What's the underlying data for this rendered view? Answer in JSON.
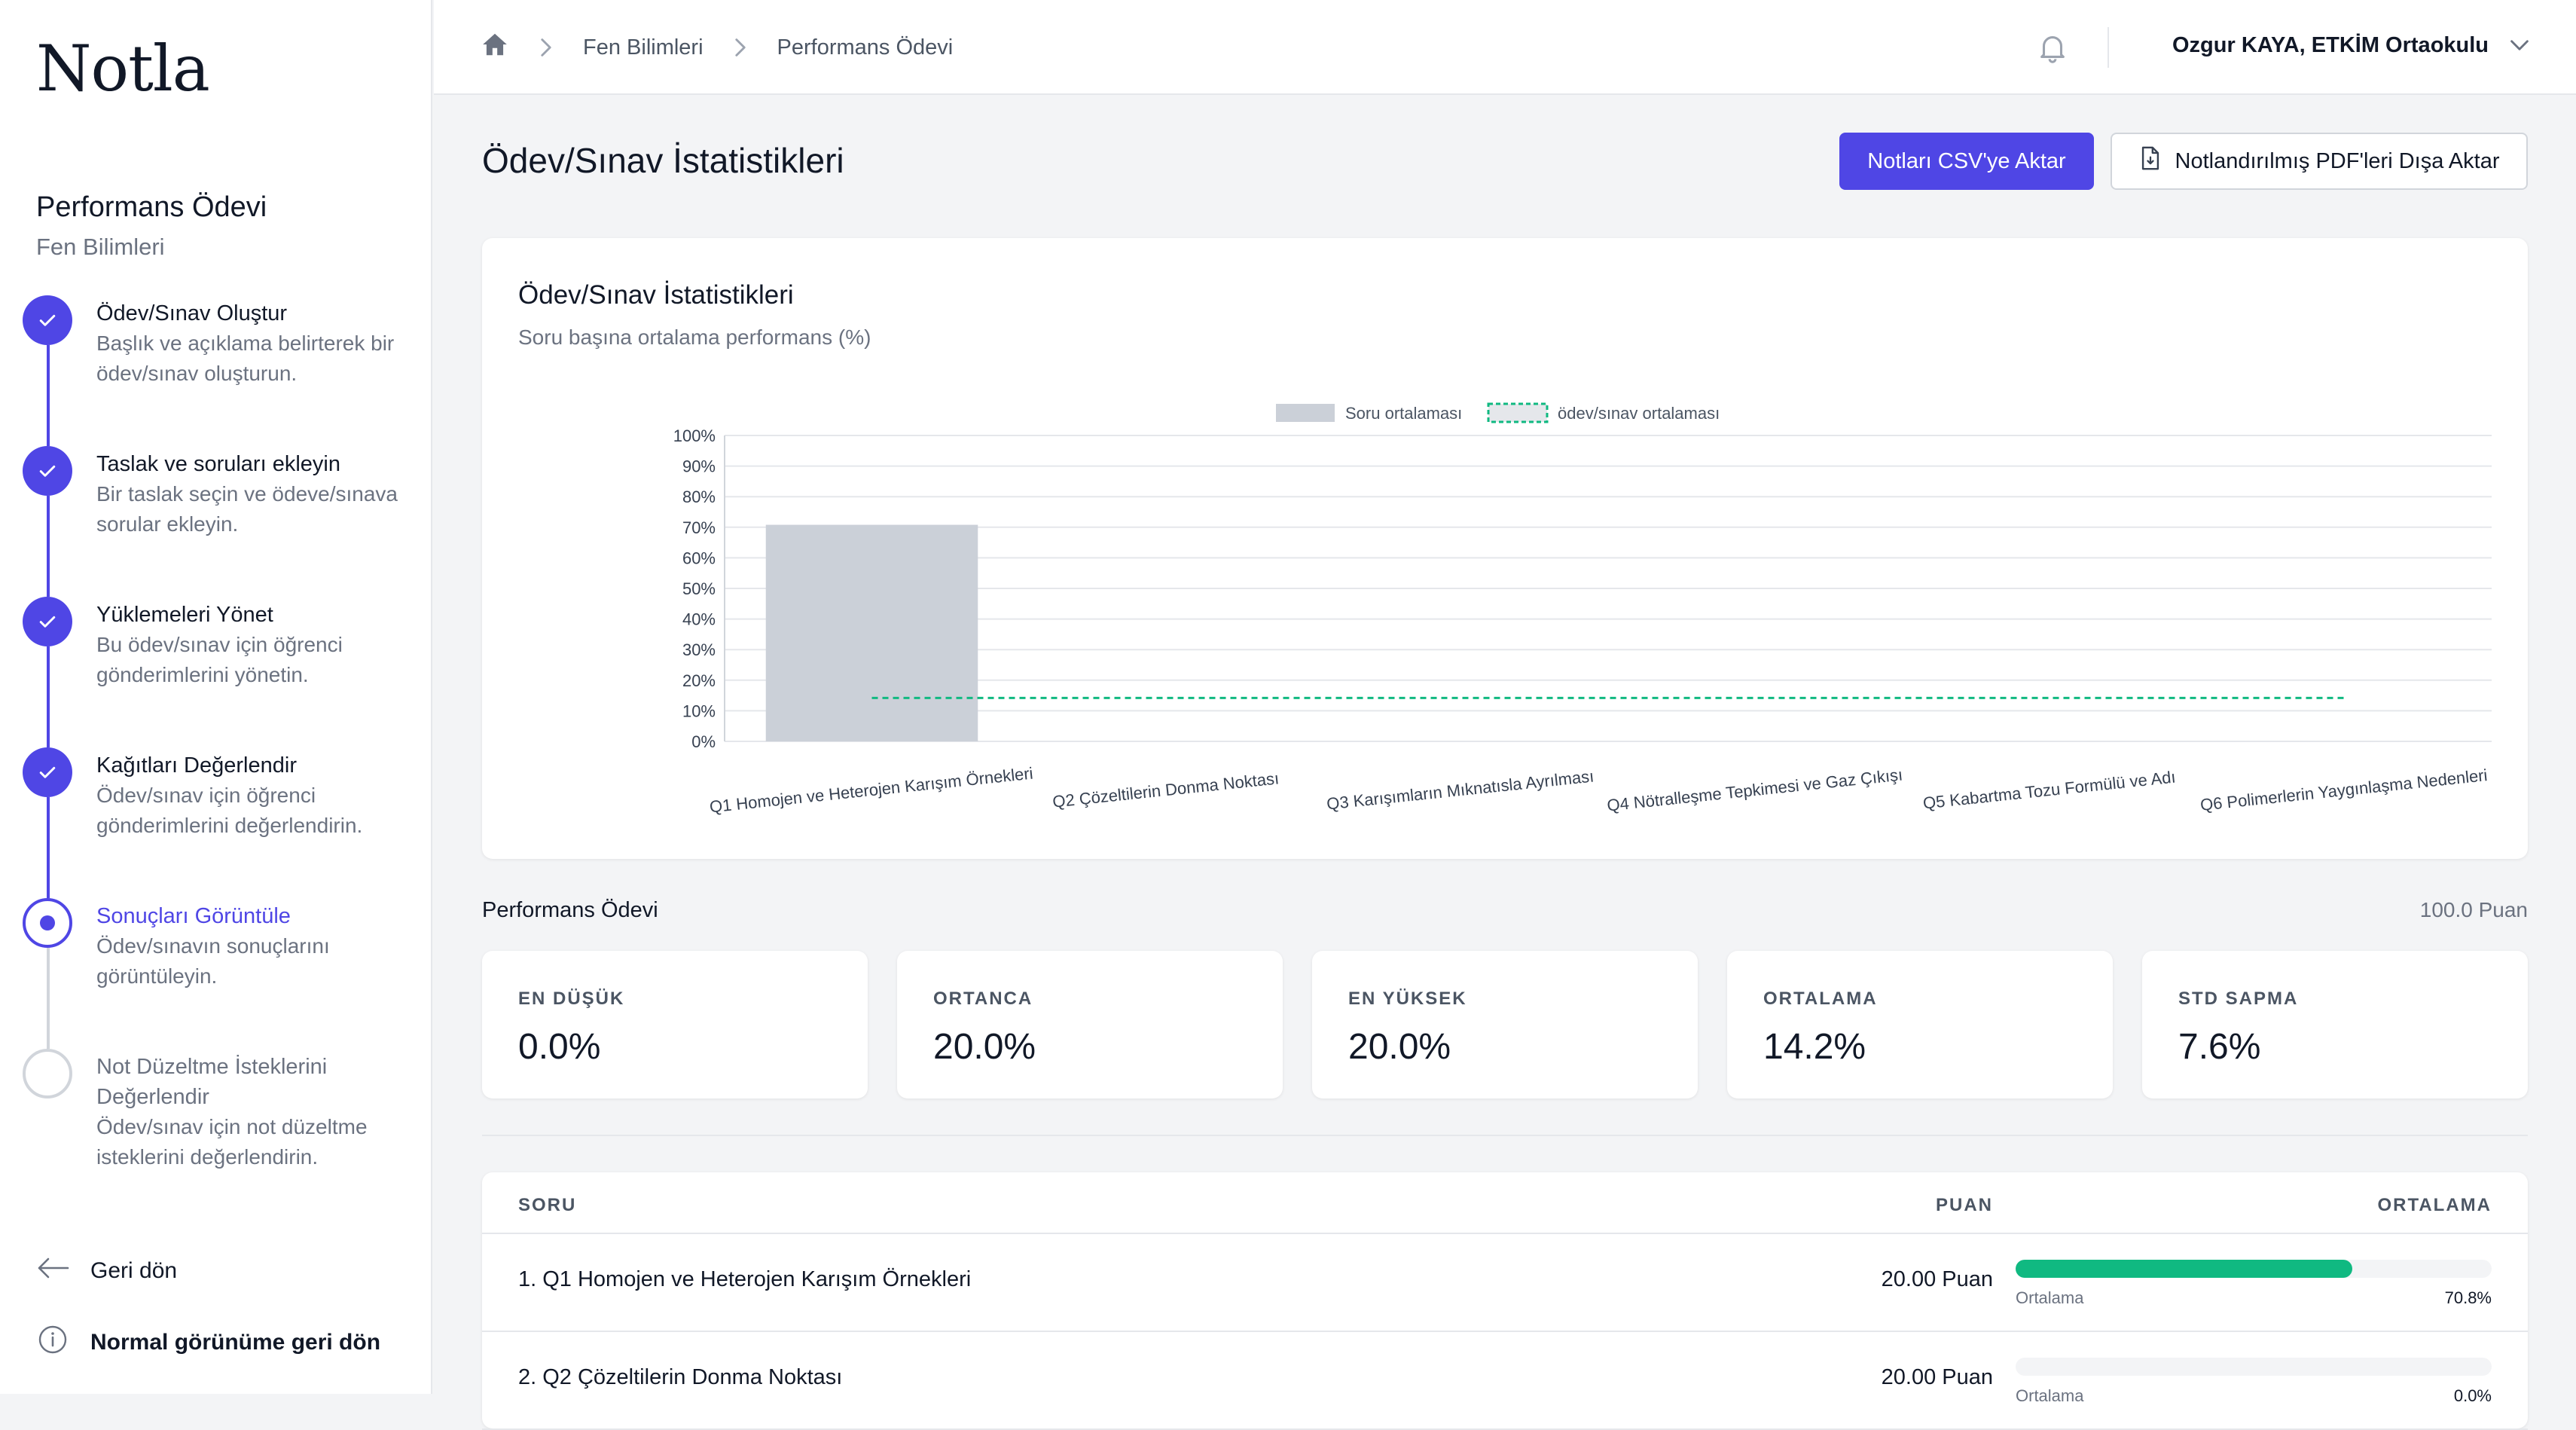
{
  "app": {
    "logo": "Notla"
  },
  "sidebar": {
    "assignment_title": "Performans Ödevi",
    "assignment_subject": "Fen Bilimleri",
    "steps": [
      {
        "title": "Ödev/Sınav Oluştur",
        "desc": "Başlık ve açıklama belirterek bir ödev/sınav oluşturun.",
        "status": "done"
      },
      {
        "title": "Taslak ve soruları ekleyin",
        "desc": "Bir taslak seçin ve ödeve/sınava sorular ekleyin.",
        "status": "done"
      },
      {
        "title": "Yüklemeleri Yönet",
        "desc": "Bu ödev/sınav için öğrenci gönderimlerini yönetin.",
        "status": "done"
      },
      {
        "title": "Kağıtları Değerlendir",
        "desc": "Ödev/sınav için öğrenci gönderimlerini değerlendirin.",
        "status": "done"
      },
      {
        "title": "Sonuçları Görüntüle",
        "desc": "Ödev/sınavın sonuçlarını görüntüleyin.",
        "status": "current"
      },
      {
        "title": "Not Düzeltme İsteklerini Değerlendir",
        "desc": "Ödev/sınav için not düzeltme isteklerini değerlendirin.",
        "status": "todo"
      }
    ],
    "back_label": "Geri dön",
    "normal_view_label": "Normal görünüme geri dön"
  },
  "header": {
    "breadcrumbs": [
      "Fen Bilimleri",
      "Performans Ödevi"
    ],
    "user": "Ozgur KAYA, ETKİM Ortaokulu"
  },
  "main": {
    "title": "Ödev/Sınav İstatistikleri",
    "csv_button": "Notları CSV'ye Aktar",
    "pdf_button": "Notlandırılmış PDF'leri Dışa Aktar",
    "chart_title": "Ödev/Sınav İstatistikleri",
    "chart_subtitle": "Soru başına ortalama performans (%)",
    "section_label": "Performans Ödevi",
    "section_points": "100.0 Puan",
    "stats": [
      {
        "label": "EN DÜŞÜK",
        "value": "0.0%"
      },
      {
        "label": "ORTANCA",
        "value": "20.0%"
      },
      {
        "label": "EN YÜKSEK",
        "value": "20.0%"
      },
      {
        "label": "ORTALAMA",
        "value": "14.2%"
      },
      {
        "label": "STD SAPMA",
        "value": "7.6%"
      }
    ],
    "table": {
      "headers": {
        "question": "SORU",
        "points": "PUAN",
        "average": "ORTALAMA"
      },
      "rows": [
        {
          "question": "1. Q1 Homojen ve Heterojen Karışım Örnekleri",
          "points": "20.00 Puan",
          "avg_label": "Ortalama",
          "avg_value": "70.8%",
          "avg": 0.708
        },
        {
          "question": "2. Q2 Çözeltilerin Donma Noktası",
          "points": "20.00 Puan",
          "avg_label": "Ortalama",
          "avg_value": "0.0%",
          "avg": 0.0
        }
      ]
    }
  },
  "colors": {
    "accent": "#4f46e5",
    "success": "#10b981",
    "bar": "#cbd0d8",
    "avg_line": "#10b981"
  },
  "chart_data": {
    "type": "bar",
    "title": "Ödev/Sınav İstatistikleri",
    "subtitle": "Soru başına ortalama performans (%)",
    "categories": [
      "Q1 Homojen ve Heterojen Karışım Örnekleri",
      "Q2 Çözeltilerin Donma Noktası",
      "Q3 Karışımların Mıknatısla Ayrılması",
      "Q4 Nötralleşme Tepkimesi ve Gaz Çıkışı",
      "Q5 Kabartma Tozu Formülü ve Adı",
      "Q6 Polimerlerin Yaygınlaşma Nedenleri"
    ],
    "series": [
      {
        "name": "Soru ortalaması",
        "values": [
          70.8,
          0,
          0,
          0,
          0,
          0
        ]
      },
      {
        "name": "ödev/sınav ortalaması",
        "values": [
          14.2,
          14.2,
          14.2,
          14.2,
          14.2,
          14.2
        ]
      }
    ],
    "yticks": [
      "0%",
      "10%",
      "20%",
      "30%",
      "40%",
      "50%",
      "60%",
      "70%",
      "80%",
      "90%",
      "100%"
    ],
    "ylim": [
      0,
      100
    ],
    "legend": "top-center",
    "grid": true
  }
}
